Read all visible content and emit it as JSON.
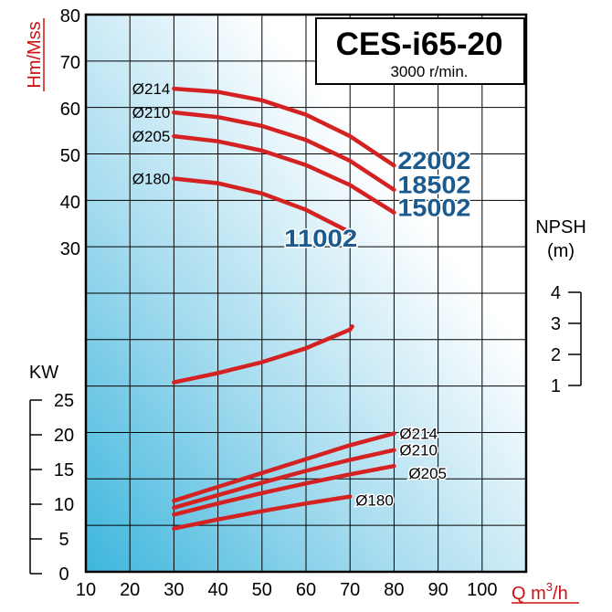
{
  "chart_data": {
    "type": "line",
    "title": "CES-i65-20",
    "subtitle": "3000 r/min.",
    "xlabel": "Q m3/h",
    "xlabel_main": "Q m",
    "xlabel_sup": "3",
    "xlabel_tail": "/h",
    "ylabel": "Hm/Mss",
    "xlim": [
      10,
      110
    ],
    "x_ticks": [
      "10",
      "20",
      "30",
      "40",
      "50",
      "60",
      "70",
      "80",
      "90",
      "100"
    ],
    "head_ticks": [
      "30",
      "40",
      "50",
      "60",
      "70",
      "80"
    ],
    "npsh_label": "NPSH",
    "npsh_unit": "(m)",
    "npsh_ticks": [
      "1",
      "2",
      "3",
      "4"
    ],
    "kw_label": "KW",
    "kw_ticks": [
      "0",
      "5",
      "10",
      "15",
      "20",
      "25"
    ],
    "grid": true,
    "head_curves": [
      {
        "diameter": "Ø214",
        "model": "22002",
        "points": [
          [
            30,
            64.3
          ],
          [
            40,
            63.6
          ],
          [
            50,
            61.8
          ],
          [
            60,
            58.7
          ],
          [
            70,
            54.1
          ],
          [
            80,
            47.8
          ]
        ]
      },
      {
        "diameter": "Ø210",
        "model": "18502",
        "points": [
          [
            30,
            59.2
          ],
          [
            40,
            58.2
          ],
          [
            50,
            56.3
          ],
          [
            60,
            53.3
          ],
          [
            70,
            48.8
          ],
          [
            80,
            42.6
          ]
        ]
      },
      {
        "diameter": "Ø205",
        "model": "15002",
        "points": [
          [
            30,
            54.1
          ],
          [
            40,
            53.0
          ],
          [
            50,
            51.0
          ],
          [
            60,
            47.9
          ],
          [
            70,
            43.6
          ],
          [
            80,
            37.7
          ]
        ]
      },
      {
        "diameter": "Ø180",
        "model": "11002",
        "points": [
          [
            30,
            45.0
          ],
          [
            40,
            44.0
          ],
          [
            50,
            41.8
          ],
          [
            60,
            38.3
          ],
          [
            70,
            33.5
          ]
        ]
      }
    ],
    "npsh_curve": [
      [
        30,
        1.1
      ],
      [
        40,
        1.4
      ],
      [
        50,
        1.75
      ],
      [
        60,
        2.2
      ],
      [
        70,
        2.8
      ],
      [
        70.5,
        2.9
      ]
    ],
    "power_curves": [
      {
        "diameter": "Ø214",
        "points": [
          [
            30,
            10.5
          ],
          [
            40,
            12.5
          ],
          [
            50,
            14.5
          ],
          [
            60,
            16.5
          ],
          [
            70,
            18.5
          ],
          [
            80,
            20.2
          ]
        ]
      },
      {
        "diameter": "Ø210",
        "points": [
          [
            30,
            9.5
          ],
          [
            40,
            11.3
          ],
          [
            50,
            13.1
          ],
          [
            60,
            14.8
          ],
          [
            70,
            16.4
          ],
          [
            80,
            17.8
          ]
        ]
      },
      {
        "diameter": "Ø205",
        "points": [
          [
            30,
            8.5
          ],
          [
            40,
            10.1
          ],
          [
            50,
            11.6
          ],
          [
            60,
            13.0
          ],
          [
            70,
            14.3
          ],
          [
            80,
            15.5
          ]
        ]
      },
      {
        "diameter": "Ø180",
        "points": [
          [
            30,
            6.5
          ],
          [
            40,
            7.8
          ],
          [
            50,
            9.0
          ],
          [
            60,
            10.1
          ],
          [
            70,
            11.1
          ]
        ]
      }
    ],
    "colors": {
      "curve": "#d42222",
      "model": "#1b5a8e",
      "axis_label": "#cc1111",
      "grid": "#000000"
    }
  }
}
